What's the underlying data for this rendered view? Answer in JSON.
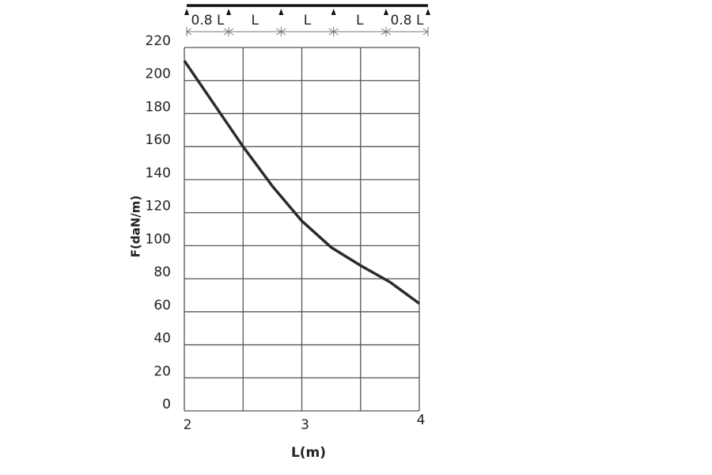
{
  "chart_data": {
    "type": "line",
    "x_label": "L(m)",
    "y_label": "F(daN/m)",
    "x": [
      2,
      2.25,
      2.5,
      2.75,
      3,
      3.25,
      3.5,
      3.75,
      4
    ],
    "series": [
      {
        "name": "F",
        "color": "#2b2b2b",
        "values": [
          212,
          186,
          160,
          136,
          115,
          99,
          88,
          78,
          65
        ]
      }
    ],
    "xlim": [
      2,
      4
    ],
    "xticks": [
      2,
      3,
      4
    ],
    "x_grid": [
      2,
      2.5,
      3,
      3.5,
      4
    ],
    "ylim": [
      0,
      220
    ],
    "yticks": [
      0,
      20,
      40,
      60,
      80,
      100,
      120,
      140,
      160,
      180,
      200,
      220
    ],
    "grid": true,
    "beam_spans": [
      "0.8 L",
      "L",
      "L",
      "L",
      "0.8 L"
    ]
  }
}
